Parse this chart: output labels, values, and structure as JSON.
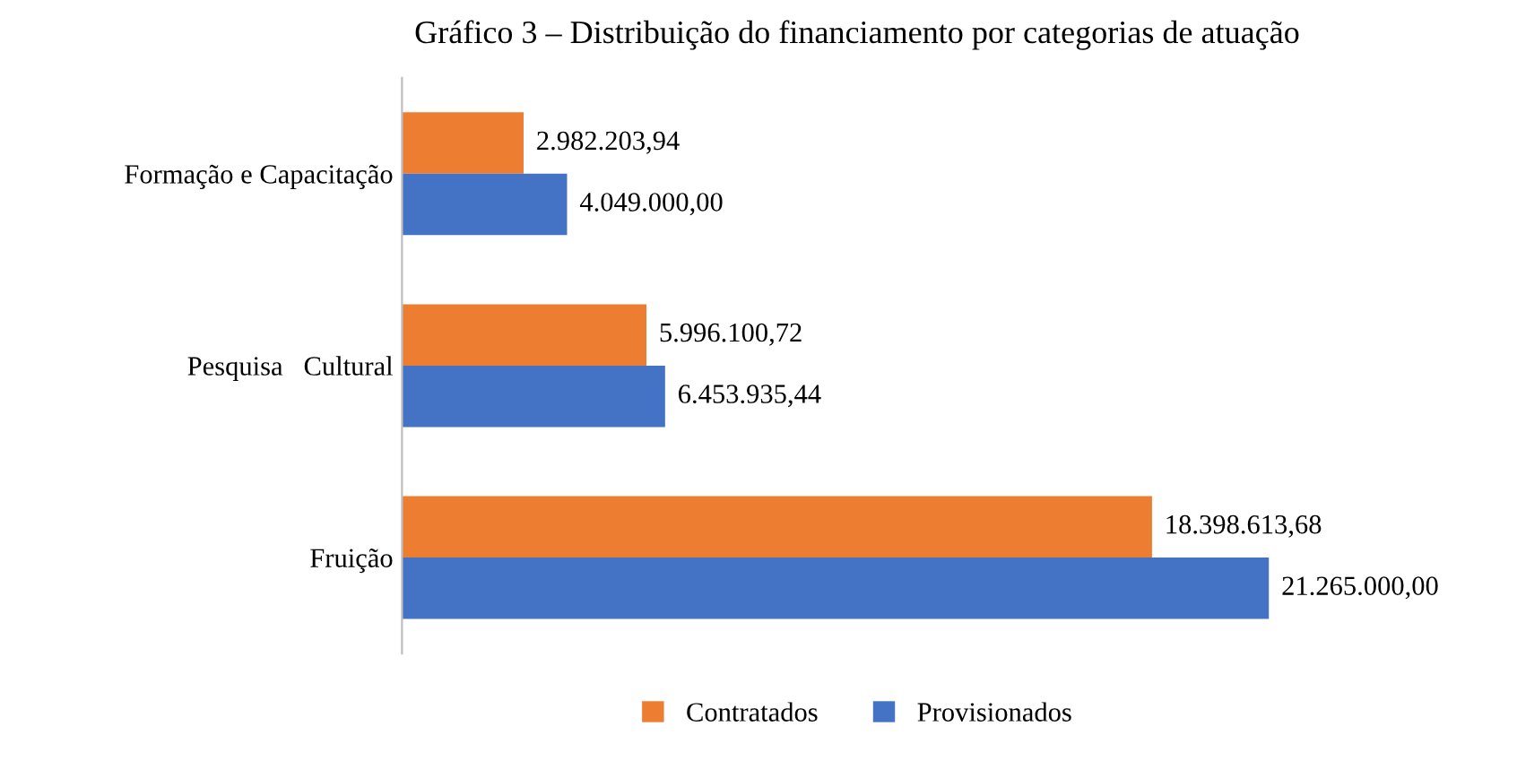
{
  "chart_data": {
    "type": "bar",
    "orientation": "horizontal",
    "title": "Gráfico 3 – Distribuição do financiamento por categorias de atuação",
    "categories": [
      "Formação e Capacitação",
      "Pesquisa   Cultural",
      "Fruição"
    ],
    "series": [
      {
        "name": "Contratados",
        "color": "#ed7d31",
        "values": [
          2982203.94,
          5996100.72,
          18398613.68
        ],
        "value_labels": [
          "2.982.203,94",
          "5.996.100,72",
          "18.398.613,68"
        ]
      },
      {
        "name": "Provisionados",
        "color": "#4472c4",
        "values": [
          4049000.0,
          6453935.44,
          21265000.0
        ],
        "value_labels": [
          "4.049.000,00",
          "6.453.935,44",
          "21.265.000,00"
        ]
      }
    ],
    "legend": "bottom",
    "tick_labels": "y"
  }
}
